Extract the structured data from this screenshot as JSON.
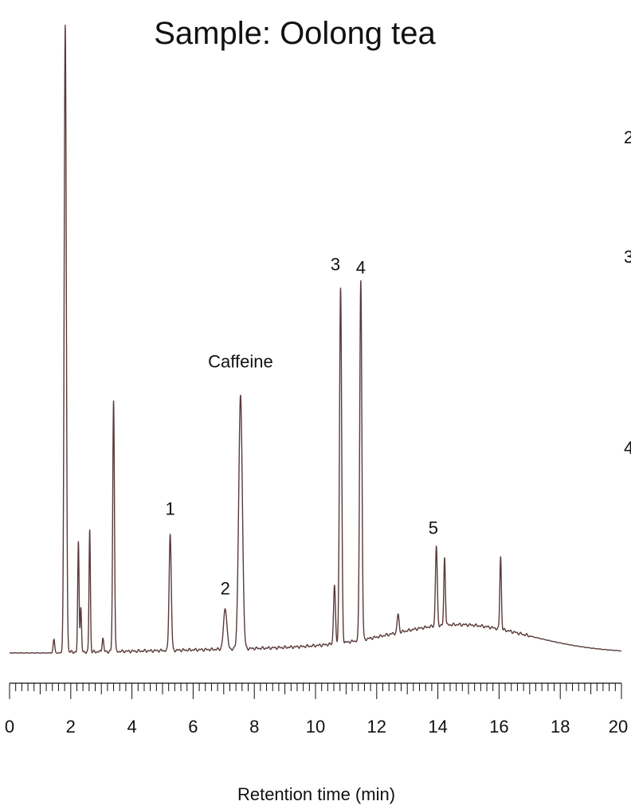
{
  "chart_data": {
    "type": "line",
    "title": "Sample: Oolong tea",
    "xlabel": "Retention time (min)",
    "ylabel": "",
    "xlim": [
      0,
      20
    ],
    "x_major_ticks": [
      0,
      2,
      4,
      6,
      8,
      10,
      12,
      14,
      16,
      18,
      20
    ],
    "x_minor_tick_step": 0.2,
    "grid": false,
    "legend": "none",
    "line_color": "#5a3a3a",
    "baseline": 0,
    "series": [
      {
        "peaks": [
          {
            "rt": 1.45,
            "height": 2.2,
            "width": 0.025
          },
          {
            "rt": 1.82,
            "height": 100,
            "width": 0.035
          },
          {
            "rt": 2.25,
            "height": 17.5,
            "width": 0.022
          },
          {
            "rt": 2.33,
            "height": 7.0,
            "width": 0.022
          },
          {
            "rt": 2.62,
            "height": 19.5,
            "width": 0.022
          },
          {
            "rt": 3.05,
            "height": 2.2,
            "width": 0.025
          },
          {
            "rt": 3.4,
            "height": 40.0,
            "width": 0.028
          },
          {
            "rt": 5.25,
            "height": 18.5,
            "width": 0.035
          },
          {
            "rt": 7.05,
            "height": 6.5,
            "width": 0.055
          },
          {
            "rt": 7.55,
            "height": 40.2,
            "width": 0.06
          },
          {
            "rt": 10.62,
            "height": 9.4,
            "width": 0.03
          },
          {
            "rt": 10.82,
            "height": 56.6,
            "width": 0.035
          },
          {
            "rt": 11.48,
            "height": 57.3,
            "width": 0.035
          },
          {
            "rt": 12.7,
            "height": 3.0,
            "width": 0.03
          },
          {
            "rt": 13.95,
            "height": 12.7,
            "width": 0.03
          },
          {
            "rt": 14.22,
            "height": 10.8,
            "width": 0.025
          },
          {
            "rt": 16.05,
            "height": 11.6,
            "width": 0.025
          }
        ],
        "hump": {
          "center": 14.8,
          "height": 4.0,
          "width": 2.2
        }
      }
    ],
    "annotations": [
      {
        "label": "1",
        "rt": 5.25,
        "height": 22.0
      },
      {
        "label": "Caffeine",
        "rt": 7.55,
        "height": 45.5
      },
      {
        "label": "2",
        "rt": 7.05,
        "height": 9.3
      },
      {
        "label": "3",
        "rt": 10.65,
        "height": 61.0
      },
      {
        "label": "4",
        "rt": 11.48,
        "height": 60.5
      },
      {
        "label": "5",
        "rt": 13.85,
        "height": 19.0
      }
    ],
    "clipped_right_edge": [
      "2",
      "3",
      "4"
    ]
  }
}
